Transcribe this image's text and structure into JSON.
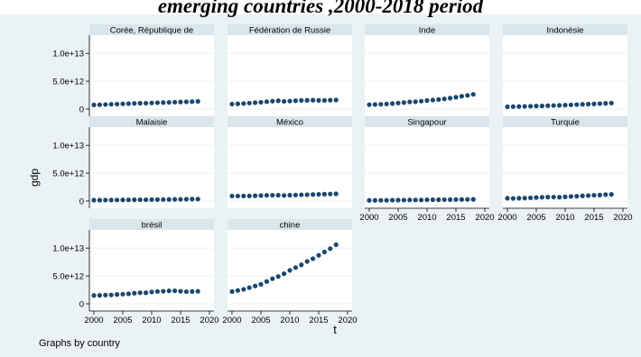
{
  "title": "emerging countries ,2000-2018 period",
  "chart_data": {
    "type": "scatter",
    "layout": "small-multiples 4x3 grid",
    "ylabel": "gdp",
    "xlabel": "t",
    "note": "Graphs by country",
    "xlim": [
      2000,
      2020
    ],
    "ylim": [
      0,
      11000000000000
    ],
    "xticks": [
      2000,
      2005,
      2010,
      2015,
      2020
    ],
    "yticks": [
      0,
      5000000000000,
      10000000000000
    ],
    "ytick_labels": [
      "0",
      "5.0e+12",
      "1.0e+13"
    ],
    "x": [
      2000,
      2001,
      2002,
      2003,
      2004,
      2005,
      2006,
      2007,
      2008,
      2009,
      2010,
      2011,
      2012,
      2013,
      2014,
      2015,
      2016,
      2017,
      2018
    ],
    "marker_color": "#1a476f",
    "panel_header_color": "#d9e6eb",
    "panels": [
      {
        "name": "Corée, République de",
        "values": [
          750000000000.0,
          780000000000.0,
          820000000000.0,
          860000000000.0,
          900000000000.0,
          940000000000.0,
          980000000000.0,
          1020000000000.0,
          1050000000000.0,
          1060000000000.0,
          1100000000000.0,
          1140000000000.0,
          1170000000000.0,
          1200000000000.0,
          1240000000000.0,
          1270000000000.0,
          1300000000000.0,
          1340000000000.0,
          1380000000000.0
        ]
      },
      {
        "name": "Fédération de Russie",
        "values": [
          900000000000.0,
          950000000000.0,
          1000000000000.0,
          1080000000000.0,
          1150000000000.0,
          1220000000000.0,
          1320000000000.0,
          1420000000000.0,
          1500000000000.0,
          1380000000000.0,
          1440000000000.0,
          1500000000000.0,
          1560000000000.0,
          1580000000000.0,
          1600000000000.0,
          1560000000000.0,
          1560000000000.0,
          1600000000000.0,
          1640000000000.0
        ]
      },
      {
        "name": "Inde",
        "values": [
          780000000000.0,
          820000000000.0,
          860000000000.0,
          920000000000.0,
          990000000000.0,
          1080000000000.0,
          1170000000000.0,
          1280000000000.0,
          1320000000000.0,
          1420000000000.0,
          1550000000000.0,
          1630000000000.0,
          1720000000000.0,
          1830000000000.0,
          1960000000000.0,
          2120000000000.0,
          2300000000000.0,
          2460000000000.0,
          2640000000000.0
        ]
      },
      {
        "name": "Indonésie",
        "values": [
          420000000000.0,
          440000000000.0,
          460000000000.0,
          490000000000.0,
          510000000000.0,
          540000000000.0,
          570000000000.0,
          610000000000.0,
          640000000000.0,
          670000000000.0,
          710000000000.0,
          760000000000.0,
          800000000000.0,
          850000000000.0,
          890000000000.0,
          930000000000.0,
          980000000000.0,
          1030000000000.0,
          1080000000000.0
        ]
      },
      {
        "name": "Malaisie",
        "values": [
          160000000000.0,
          160000000000.0,
          170000000000.0,
          180000000000.0,
          190000000000.0,
          200000000000.0,
          210000000000.0,
          220000000000.0,
          230000000000.0,
          230000000000.0,
          250000000000.0,
          260000000000.0,
          270000000000.0,
          280000000000.0,
          300000000000.0,
          310000000000.0,
          320000000000.0,
          340000000000.0,
          350000000000.0
        ]
      },
      {
        "name": "México",
        "values": [
          900000000000.0,
          900000000000.0,
          910000000000.0,
          920000000000.0,
          950000000000.0,
          980000000000.0,
          1020000000000.0,
          1040000000000.0,
          1050000000000.0,
          1000000000000.0,
          1050000000000.0,
          1080000000000.0,
          1120000000000.0,
          1140000000000.0,
          1170000000000.0,
          1200000000000.0,
          1230000000000.0,
          1260000000000.0,
          1290000000000.0
        ]
      },
      {
        "name": "Singapour",
        "values": [
          120000000000.0,
          120000000000.0,
          130000000000.0,
          130000000000.0,
          150000000000.0,
          160000000000.0,
          170000000000.0,
          190000000000.0,
          190000000000.0,
          190000000000.0,
          220000000000.0,
          230000000000.0,
          240000000000.0,
          250000000000.0,
          260000000000.0,
          270000000000.0,
          280000000000.0,
          290000000000.0,
          300000000000.0
        ]
      },
      {
        "name": "Turquie",
        "values": [
          500000000000.0,
          470000000000.0,
          500000000000.0,
          530000000000.0,
          580000000000.0,
          630000000000.0,
          680000000000.0,
          710000000000.0,
          720000000000.0,
          690000000000.0,
          750000000000.0,
          820000000000.0,
          860000000000.0,
          930000000000.0,
          980000000000.0,
          1040000000000.0,
          1070000000000.0,
          1150000000000.0,
          1190000000000.0
        ]
      },
      {
        "name": "brésil",
        "values": [
          1500000000000.0,
          1520000000000.0,
          1570000000000.0,
          1590000000000.0,
          1680000000000.0,
          1730000000000.0,
          1800000000000.0,
          1900000000000.0,
          1990000000000.0,
          1980000000000.0,
          2130000000000.0,
          2210000000000.0,
          2250000000000.0,
          2320000000000.0,
          2330000000000.0,
          2250000000000.0,
          2170000000000.0,
          2200000000000.0,
          2240000000000.0
        ]
      },
      {
        "name": "chine",
        "values": [
          2200000000000.0,
          2400000000000.0,
          2600000000000.0,
          2900000000000.0,
          3200000000000.0,
          3500000000000.0,
          4000000000000.0,
          4500000000000.0,
          4900000000000.0,
          5400000000000.0,
          6000000000000.0,
          6500000000000.0,
          7000000000000.0,
          7600000000000.0,
          8100000000000.0,
          8700000000000.0,
          9300000000000.0,
          9900000000000.0,
          10600000000000.0
        ]
      }
    ]
  }
}
